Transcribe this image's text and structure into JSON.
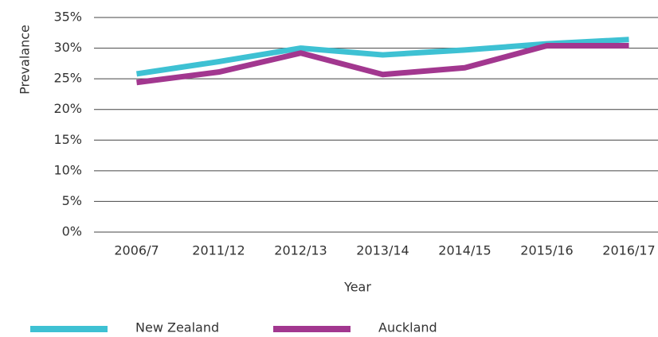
{
  "chart_data": {
    "type": "line",
    "xlabel": "Year",
    "ylabel": "Prevalance",
    "categories": [
      "2006/7",
      "2011/12",
      "2012/13",
      "2013/14",
      "2014/15",
      "2015/16",
      "2016/17"
    ],
    "series": [
      {
        "name": "New Zealand",
        "color": "#3ec1d3",
        "values": [
          25.8,
          27.8,
          30.0,
          28.9,
          29.7,
          30.7,
          31.4
        ]
      },
      {
        "name": "Auckland",
        "color": "#a2378f",
        "values": [
          24.4,
          26.1,
          29.2,
          25.7,
          26.8,
          30.4,
          30.4
        ]
      }
    ],
    "ylim": [
      0,
      35
    ],
    "yticks": [
      {
        "value": 0,
        "label": "0%"
      },
      {
        "value": 5,
        "label": "5%"
      },
      {
        "value": 10,
        "label": "10%"
      },
      {
        "value": 15,
        "label": "15%"
      },
      {
        "value": 20,
        "label": "20%"
      },
      {
        "value": 25,
        "label": "25%"
      },
      {
        "value": 30,
        "label": "30%"
      },
      {
        "value": 35,
        "label": "35%"
      }
    ],
    "grid": true
  }
}
